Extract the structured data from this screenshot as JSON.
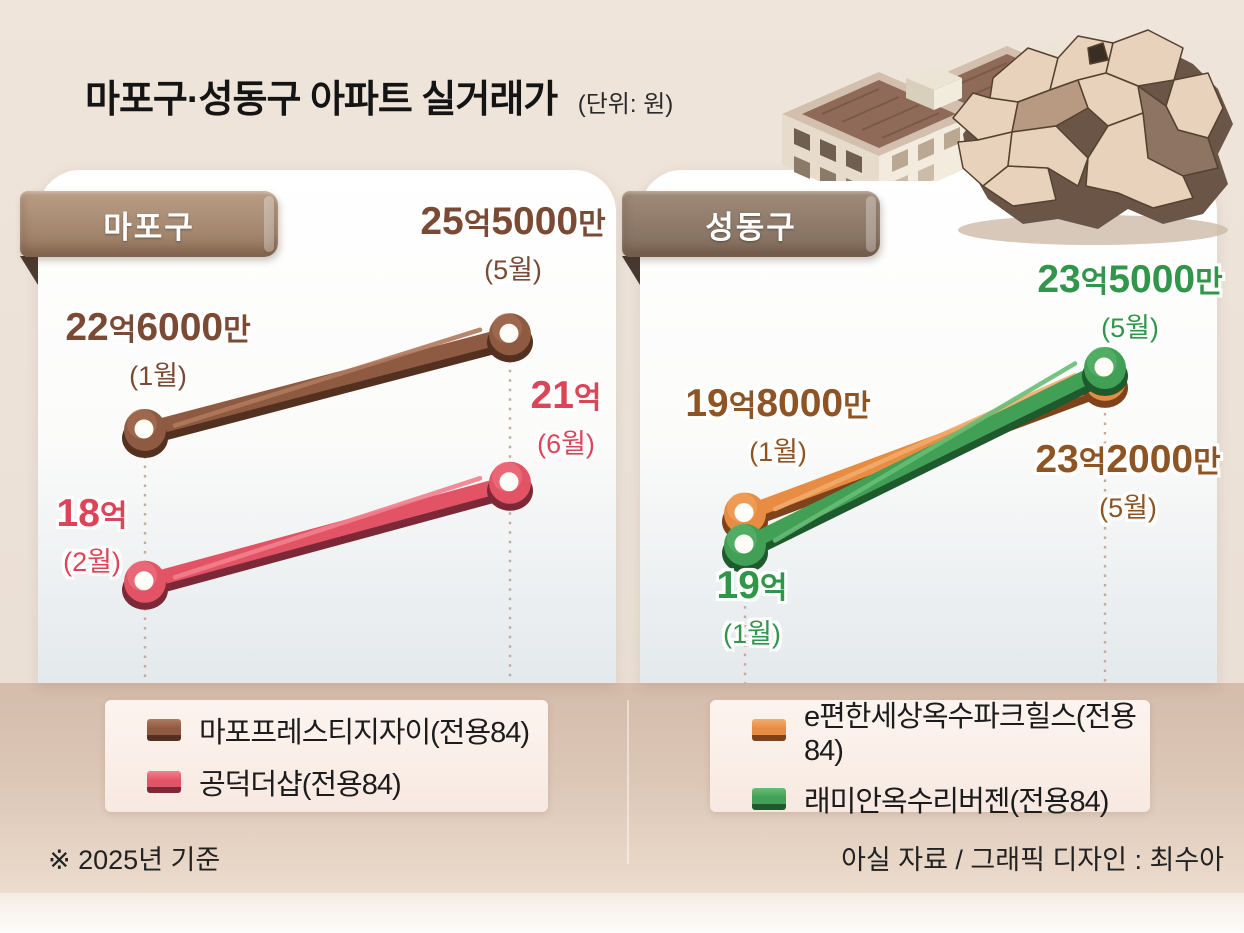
{
  "title": {
    "main": "마포구·성동구 아파트 실거래가",
    "unit": "(단위: 원)"
  },
  "footer": {
    "note": "※ 2025년 기준",
    "credit": "아실 자료 / 그래픽 디자인 : 최수아"
  },
  "chart_data": [
    {
      "type": "line",
      "title": "마포구",
      "unit": "원",
      "x_type": "month",
      "series": [
        {
          "name": "마포프레스티지자이(전용84)",
          "color": "#8e5a41",
          "color_dark": "#53301f",
          "color_light": "#b07a5e",
          "label_color": "#7b4a34",
          "points": [
            {
              "month": "(1월)",
              "label": "22억6000만",
              "value_eok": 22.6
            },
            {
              "month": "(5월)",
              "label": "25억5000만",
              "value_eok": 25.5
            }
          ]
        },
        {
          "name": "공덕더샵(전용84)",
          "color": "#e25365",
          "color_dark": "#7c2836",
          "color_light": "#f2808e",
          "label_color": "#dc4458",
          "points": [
            {
              "month": "(2월)",
              "label": "18억",
              "value_eok": 18
            },
            {
              "month": "(6월)",
              "label": "21억",
              "value_eok": 21
            }
          ]
        }
      ]
    },
    {
      "type": "line",
      "title": "성동구",
      "unit": "원",
      "x_type": "month",
      "series": [
        {
          "name": "e편한세상옥수파크힐스(전용84)",
          "color": "#e78c42",
          "color_dark": "#7e431a",
          "color_light": "#f3ac6c",
          "label_color": "#8e5424",
          "points": [
            {
              "month": "(1월)",
              "label": "19억8000만",
              "value_eok": 19.8
            },
            {
              "month": "(5월)",
              "label": "23억2000만",
              "value_eok": 23.2
            }
          ]
        },
        {
          "name": "래미안옥수리버젠(전용84)",
          "color": "#41a055",
          "color_dark": "#1f5a2d",
          "color_light": "#68bd77",
          "label_color": "#31964a",
          "points": [
            {
              "month": "(1월)",
              "label": "19억",
              "value_eok": 19
            },
            {
              "month": "(5월)",
              "label": "23억5000만",
              "value_eok": 23.5
            }
          ]
        }
      ]
    }
  ]
}
